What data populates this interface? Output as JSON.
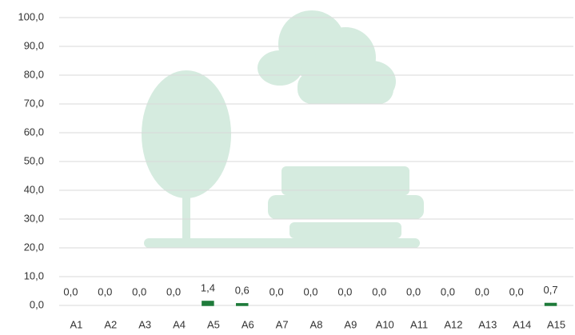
{
  "chart_data": {
    "type": "bar",
    "categories": [
      "A1",
      "A2",
      "A3",
      "A4",
      "A5",
      "A6",
      "A7",
      "A8",
      "A9",
      "A10",
      "A11",
      "A12",
      "A13",
      "A14",
      "A15"
    ],
    "series": [
      {
        "color": "#1e7b3a",
        "values": [
          0,
          0,
          0,
          0,
          1.4,
          0.6,
          0,
          0,
          0,
          0,
          0,
          0,
          0,
          0,
          0.7
        ],
        "value_labels": [
          "0,0",
          "0,0",
          "0,0",
          "0,0",
          "1,4",
          "0,6",
          "0,0",
          "0,0",
          "0,0",
          "0,0",
          "0,0",
          "0,0",
          "0,0",
          "0,0",
          "0,7"
        ]
      },
      {
        "color": "#9b1b1b",
        "values": [
          0,
          0,
          0,
          0,
          0,
          0,
          0,
          0,
          0,
          0,
          0,
          0,
          0,
          0,
          0
        ]
      }
    ],
    "ylim": [
      0,
      100
    ],
    "yticks": [
      {
        "value": 0,
        "label": "0,0"
      },
      {
        "value": 10,
        "label": "10,0"
      },
      {
        "value": 20,
        "label": "20,0"
      },
      {
        "value": 30,
        "label": "30,0"
      },
      {
        "value": 40,
        "label": "40,0"
      },
      {
        "value": 50,
        "label": "50,0"
      },
      {
        "value": 60,
        "label": "60,0"
      },
      {
        "value": 70,
        "label": "70,0"
      },
      {
        "value": 80,
        "label": "80,0"
      },
      {
        "value": 90,
        "label": "90,0"
      },
      {
        "value": 100,
        "label": "100,0"
      }
    ],
    "grid": true
  }
}
